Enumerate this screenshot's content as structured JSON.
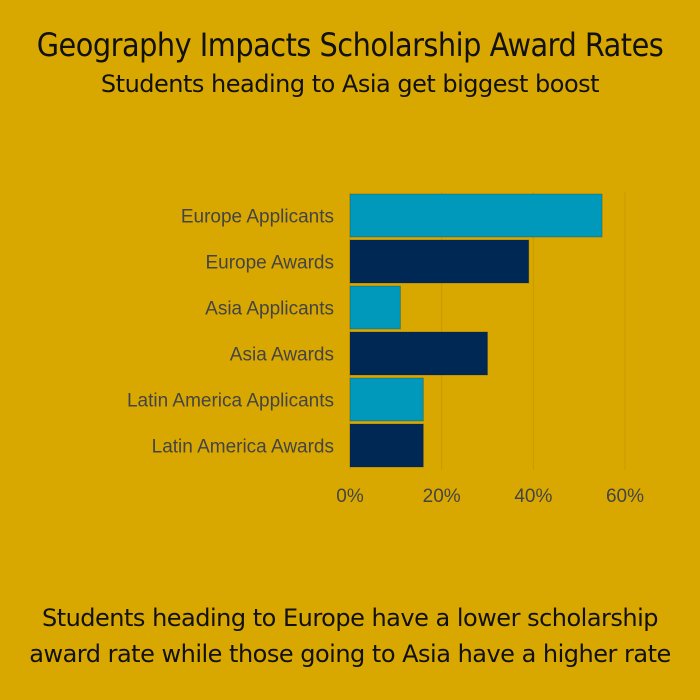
{
  "chart_data": {
    "type": "bar",
    "orientation": "horizontal",
    "title": "Geography Impacts Scholarship Award Rates",
    "subtitle": "Students heading to Asia get biggest boost",
    "categories": [
      "Europe Applicants",
      "Europe Awards",
      "Asia Applicants",
      "Asia Awards",
      "Latin America Applicants",
      "Latin America Awards"
    ],
    "values": [
      55,
      39,
      11,
      30,
      16,
      16
    ],
    "xlim": [
      0,
      60
    ],
    "xticks": [
      "0%",
      "20%",
      "40%",
      "60%"
    ],
    "grid": true,
    "colors": {
      "applicants": "#0099BB",
      "awards": "#002855",
      "background": "#D9A800",
      "text": "#111111",
      "tick_text": "#444444"
    }
  },
  "footer": "Students heading to Europe have a lower scholarship award rate while those going to Asia have a higher rate"
}
